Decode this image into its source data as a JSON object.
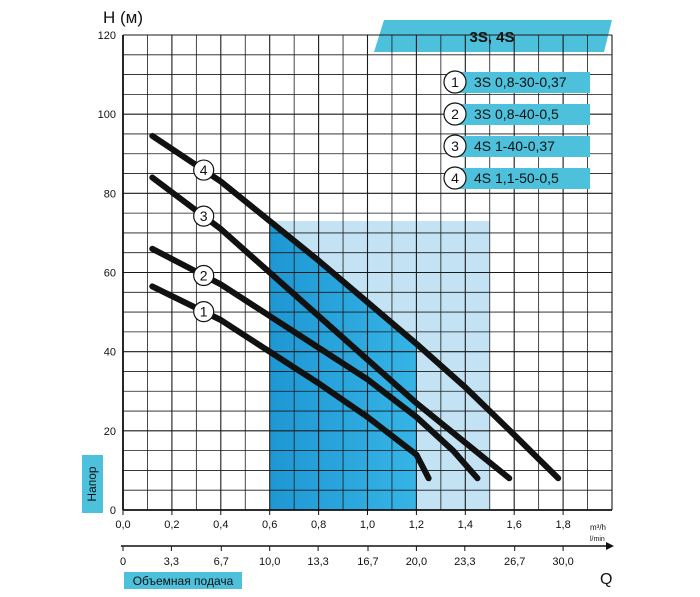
{
  "chart_data": {
    "type": "line",
    "title": "3S, 4S",
    "ylabel": "H (м)",
    "y_axis_caption": "Напор",
    "xlabel_m3h": "m³/h",
    "xlabel_lmin": "l/min",
    "x_axis_caption": "Объемная подача",
    "q_label": "Q",
    "xlim": [
      0,
      2.0
    ],
    "ylim": [
      0,
      120
    ],
    "grid": true,
    "x_ticks": [
      0.0,
      0.2,
      0.4,
      0.6,
      0.8,
      1.0,
      1.2,
      1.4,
      1.6,
      1.8
    ],
    "x_tick_labels": [
      "0,0",
      "0,2",
      "0,4",
      "0,6",
      "0,8",
      "1,0",
      "1,2",
      "1,4",
      "1,6",
      "1,8"
    ],
    "y_ticks": [
      0,
      20,
      40,
      60,
      80,
      100,
      120
    ],
    "lmin_ticks": [
      0,
      3.3,
      6.7,
      10.0,
      13.3,
      16.7,
      20.0,
      23.3,
      26.7,
      30.0
    ],
    "lmin_tick_labels": [
      "0",
      "3,3",
      "6,7",
      "10,0",
      "13,3",
      "16,7",
      "20,0",
      "23,3",
      "26,7",
      "30,0"
    ],
    "working_zone_outer": {
      "x_from": 0.6,
      "x_to": 1.5
    },
    "working_zone_inner": {
      "x_from": 0.6,
      "x_to": 1.2
    },
    "series": [
      {
        "id": "1",
        "name": "3S 0,8-30-0,37",
        "points": [
          [
            0.12,
            56.5
          ],
          [
            0.4,
            48
          ],
          [
            0.6,
            40
          ],
          [
            0.8,
            32
          ],
          [
            1.0,
            23.5
          ],
          [
            1.2,
            14
          ],
          [
            1.25,
            8
          ]
        ]
      },
      {
        "id": "2",
        "name": "3S 0,8-40-0,5",
        "points": [
          [
            0.12,
            66
          ],
          [
            0.4,
            57
          ],
          [
            0.6,
            49
          ],
          [
            0.8,
            41
          ],
          [
            1.0,
            33
          ],
          [
            1.2,
            23.5
          ],
          [
            1.35,
            15
          ],
          [
            1.45,
            8
          ]
        ]
      },
      {
        "id": "3",
        "name": "4S 1-40-0,37",
        "points": [
          [
            0.12,
            84
          ],
          [
            0.4,
            71
          ],
          [
            0.6,
            60
          ],
          [
            0.8,
            49
          ],
          [
            1.0,
            38
          ],
          [
            1.2,
            27
          ],
          [
            1.4,
            17
          ],
          [
            1.58,
            8
          ]
        ]
      },
      {
        "id": "4",
        "name": "4S 1,1-50-0,5",
        "points": [
          [
            0.12,
            94.5
          ],
          [
            0.4,
            83
          ],
          [
            0.6,
            73
          ],
          [
            0.8,
            63
          ],
          [
            1.0,
            52.5
          ],
          [
            1.2,
            42
          ],
          [
            1.4,
            31
          ],
          [
            1.6,
            19
          ],
          [
            1.78,
            8
          ]
        ]
      }
    ],
    "colors": {
      "accent": "#4dc1dc",
      "zone_light": "#b9def3",
      "zone_dark": "#2aa7df",
      "curve": "#111111",
      "grid": "#1a1a1a"
    }
  }
}
